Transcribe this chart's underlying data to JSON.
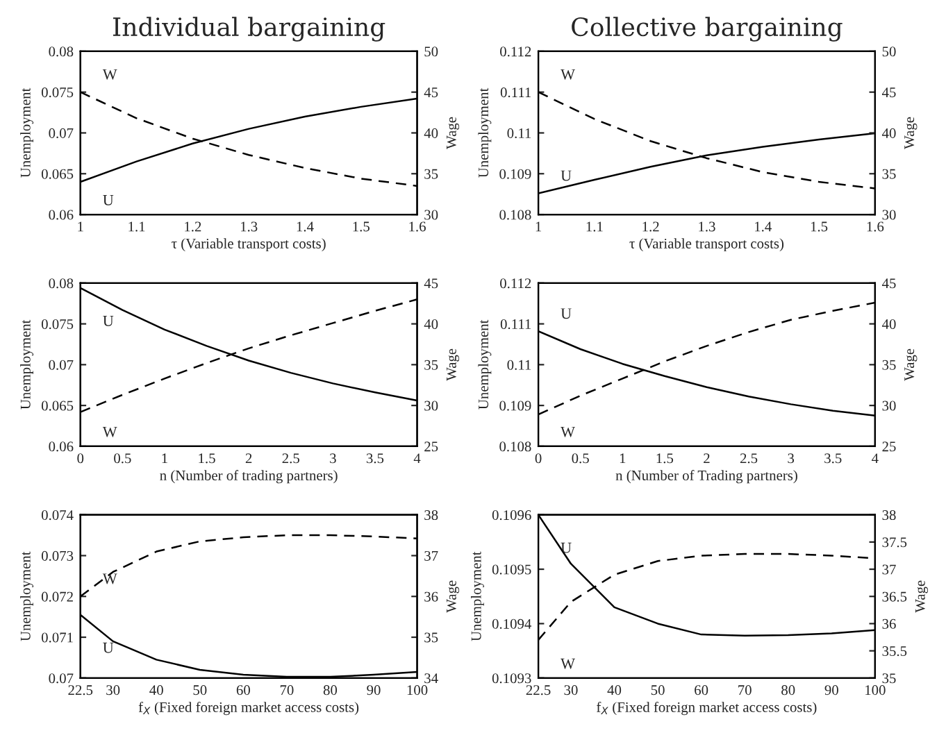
{
  "chart_data": [
    {
      "type": "line",
      "title": "Individual bargaining",
      "xlabel": "τ (Variable transport costs)",
      "ylabel": "Unemployment",
      "y2label": "Wage",
      "x": [
        1.0,
        1.1,
        1.2,
        1.3,
        1.4,
        1.5,
        1.6
      ],
      "xlim": [
        1,
        1.6
      ],
      "xticks": [
        1,
        1.1,
        1.2,
        1.3,
        1.4,
        1.5,
        1.6
      ],
      "ylim": [
        0.06,
        0.08
      ],
      "yticks": [
        0.06,
        0.065,
        0.07,
        0.075,
        0.08
      ],
      "y2lim": [
        30,
        50
      ],
      "y2ticks": [
        30,
        35,
        40,
        45,
        50
      ],
      "series": [
        {
          "name": "U",
          "color": "#000000",
          "line_style": "solid",
          "values": [
            0.064,
            0.0665,
            0.0687,
            0.0705,
            0.072,
            0.0732,
            0.0742
          ]
        },
        {
          "name": "W",
          "color": "#000000",
          "line_style": "dashed",
          "axis": "y2",
          "values": [
            45,
            41.8,
            39.3,
            37.3,
            35.7,
            34.4,
            33.5
          ]
        }
      ]
    },
    {
      "type": "line",
      "title": "Collective bargaining",
      "xlabel": "τ (Variable transport costs)",
      "ylabel": "Unemployment",
      "y2label": "Wage",
      "x": [
        1.0,
        1.1,
        1.2,
        1.3,
        1.4,
        1.5,
        1.6
      ],
      "xlim": [
        1,
        1.6
      ],
      "xticks": [
        1,
        1.1,
        1.2,
        1.3,
        1.4,
        1.5,
        1.6
      ],
      "ylim": [
        0.108,
        0.112
      ],
      "yticks": [
        0.108,
        0.109,
        0.11,
        0.111,
        0.112
      ],
      "y2lim": [
        30,
        50
      ],
      "y2ticks": [
        30,
        35,
        40,
        45,
        50
      ],
      "series": [
        {
          "name": "U",
          "color": "#000000",
          "line_style": "solid",
          "values": [
            0.10852,
            0.10885,
            0.10917,
            0.10945,
            0.10966,
            0.10984,
            0.10999
          ]
        },
        {
          "name": "W",
          "color": "#000000",
          "line_style": "dashed",
          "axis": "y2",
          "values": [
            45,
            41.7,
            39.0,
            36.9,
            35.2,
            34.0,
            33.2
          ]
        }
      ]
    },
    {
      "type": "line",
      "xlabel": "n (Number of trading partners)",
      "ylabel": "Unemployment",
      "y2label": "Wage",
      "x": [
        0,
        0.5,
        1,
        1.5,
        2,
        2.5,
        3,
        3.5,
        4
      ],
      "xlim": [
        0,
        4
      ],
      "xticks": [
        0,
        0.5,
        1,
        1.5,
        2,
        2.5,
        3,
        3.5,
        4
      ],
      "ylim": [
        0.06,
        0.08
      ],
      "yticks": [
        0.06,
        0.065,
        0.07,
        0.075,
        0.08
      ],
      "y2lim": [
        25,
        45
      ],
      "y2ticks": [
        25,
        30,
        35,
        40,
        45
      ],
      "series": [
        {
          "name": "U",
          "color": "#000000",
          "line_style": "solid",
          "values": [
            0.0794,
            0.0767,
            0.0743,
            0.0723,
            0.0705,
            0.069,
            0.0677,
            0.0666,
            0.0656
          ]
        },
        {
          "name": "W",
          "color": "#000000",
          "line_style": "dashed",
          "axis": "y2",
          "values": [
            29.2,
            31.3,
            33.3,
            35.2,
            37.0,
            38.6,
            40.1,
            41.6,
            43.0
          ]
        }
      ]
    },
    {
      "type": "line",
      "xlabel": "n (Number of Trading partners)",
      "ylabel": "Unemployment",
      "y2label": "Wage",
      "x": [
        0,
        0.5,
        1,
        1.5,
        2,
        2.5,
        3,
        3.5,
        4
      ],
      "xlim": [
        0,
        4
      ],
      "xticks": [
        0,
        0.5,
        1,
        1.5,
        2,
        2.5,
        3,
        3.5,
        4
      ],
      "ylim": [
        0.108,
        0.112
      ],
      "yticks": [
        0.108,
        0.109,
        0.11,
        0.111,
        0.112
      ],
      "y2lim": [
        25,
        45
      ],
      "y2ticks": [
        25,
        30,
        35,
        40,
        45
      ],
      "series": [
        {
          "name": "U",
          "color": "#000000",
          "line_style": "solid",
          "values": [
            0.11082,
            0.11038,
            0.11002,
            0.10972,
            0.10945,
            0.10922,
            0.10903,
            0.10887,
            0.10875
          ]
        },
        {
          "name": "W",
          "color": "#000000",
          "line_style": "dashed",
          "axis": "y2",
          "values": [
            28.9,
            31.2,
            33.3,
            35.4,
            37.3,
            39.0,
            40.5,
            41.6,
            42.6
          ]
        }
      ]
    },
    {
      "type": "line",
      "xlabel": "f$_{X}$ (Fixed foreign market access costs)",
      "ylabel": "Unemployment",
      "y2label": "Wage",
      "x": [
        22.5,
        30,
        40,
        50,
        60,
        70,
        80,
        90,
        100
      ],
      "xlim": [
        22.5,
        100
      ],
      "xticks": [
        22.5,
        30,
        40,
        50,
        60,
        70,
        80,
        90,
        100
      ],
      "ylim": [
        0.07,
        0.074
      ],
      "yticks": [
        0.07,
        0.071,
        0.072,
        0.073,
        0.074
      ],
      "y2lim": [
        34,
        38
      ],
      "y2ticks": [
        34,
        35,
        36,
        37,
        38
      ],
      "series": [
        {
          "name": "U",
          "color": "#000000",
          "line_style": "solid",
          "values": [
            0.07155,
            0.0709,
            0.07045,
            0.0702,
            0.07008,
            0.07003,
            0.07003,
            0.07008,
            0.07015
          ]
        },
        {
          "name": "W",
          "color": "#000000",
          "line_style": "dashed",
          "axis": "y2",
          "values": [
            36.0,
            36.6,
            37.1,
            37.35,
            37.45,
            37.5,
            37.5,
            37.47,
            37.42
          ]
        }
      ]
    },
    {
      "type": "line",
      "xlabel": "f$_{X}$ (Fixed foreign market access costs)",
      "ylabel": "Unemployment",
      "y2label": "Wage",
      "x": [
        22.5,
        30,
        40,
        50,
        60,
        70,
        80,
        90,
        100
      ],
      "xlim": [
        22.5,
        100
      ],
      "xticks": [
        22.5,
        30,
        40,
        50,
        60,
        70,
        80,
        90,
        100
      ],
      "ylim": [
        0.1093,
        0.1096
      ],
      "yticks": [
        0.1093,
        0.1094,
        0.1095,
        0.1096
      ],
      "y2lim": [
        35,
        38
      ],
      "y2ticks": [
        35,
        35.5,
        36,
        36.5,
        37,
        37.5,
        38
      ],
      "series": [
        {
          "name": "U",
          "color": "#000000",
          "line_style": "solid",
          "values": [
            0.1096,
            0.10951,
            0.10943,
            0.1094,
            0.10938,
            0.109378,
            0.109379,
            0.109382,
            0.109388
          ]
        },
        {
          "name": "W",
          "color": "#000000",
          "line_style": "dashed",
          "axis": "y2",
          "values": [
            35.7,
            36.4,
            36.9,
            37.15,
            37.25,
            37.28,
            37.28,
            37.25,
            37.2
          ]
        }
      ]
    }
  ]
}
